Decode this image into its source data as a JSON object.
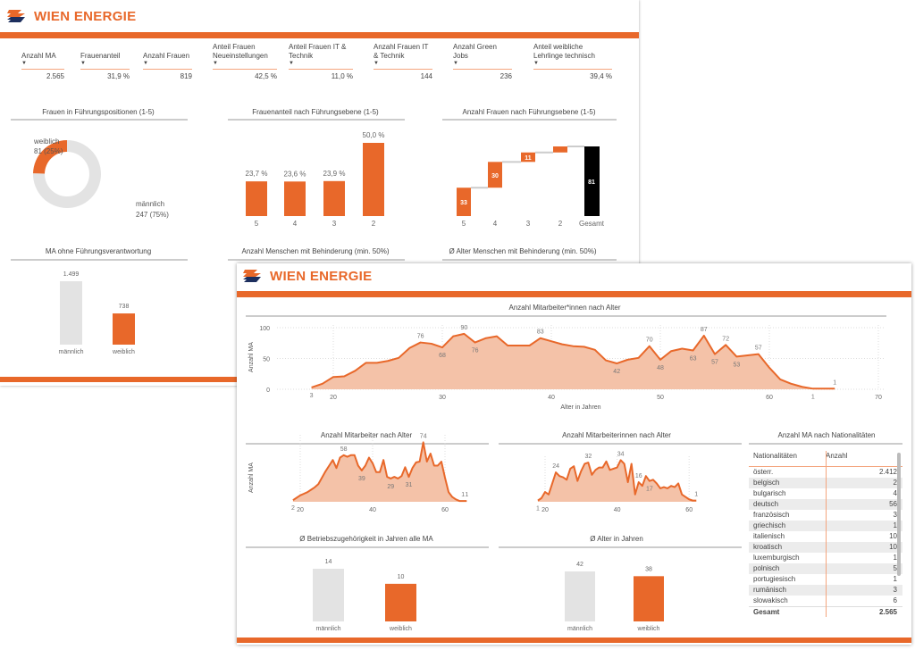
{
  "brand": {
    "name": "WIEN ENERGIE",
    "accent": "#e8682a",
    "light": "#f4c2a8",
    "grey": "#e3e3e3"
  },
  "kpis": [
    {
      "label": "Anzahl MA",
      "value": "2.565"
    },
    {
      "label": "Frauenanteil",
      "value": "31,9 %"
    },
    {
      "label": "Anzahl Frauen",
      "value": "819"
    },
    {
      "label": "Anteil Frauen Neueinstellungen",
      "value": "42,5 %"
    },
    {
      "label": "Anteil Frauen IT & Technik",
      "value": "11,0 %"
    },
    {
      "label": "Anzahl Frauen IT & Technik",
      "value": "144"
    },
    {
      "label": "Anzahl Green Jobs",
      "value": "236"
    },
    {
      "label": "Anteil weibliche Lehrlinge technisch",
      "value": "39,4 %"
    }
  ],
  "back_titles": {
    "donut": "Frauen in Führungspositionen (1-5)",
    "share": "Frauenanteil nach Führungsebene (1-5)",
    "waterfall": "Anzahl Frauen nach Führungsebene (1-5)",
    "ohne": "MA ohne Führungsverantwortung",
    "behinderung": "Anzahl Menschen mit Behinderung (min. 50%)",
    "alter_beh": "Ø Alter Menschen mit Behinderung (min. 50%)"
  },
  "front_titles": {
    "main": "Anzahl Mitarbeiter*innen nach Alter",
    "male": "Anzahl Mitarbeiter nach Alter",
    "female": "Anzahl Mitarbeiterinnen nach Alter",
    "tenure": "Ø Betriebszugehörigkeit in Jahren alle MA",
    "age": "Ø Alter in Jahren",
    "nat": "Anzahl MA nach Nationalitäten"
  },
  "chart_data": [
    {
      "id": "donut",
      "type": "pie",
      "title": "Frauen in Führungspositionen (1-5)",
      "slices": [
        {
          "name": "weiblich",
          "value": 81,
          "label": "81 (25%)"
        },
        {
          "name": "männlich",
          "value": 247,
          "label": "247 (75%)"
        }
      ]
    },
    {
      "id": "share",
      "type": "bar",
      "categories": [
        "5",
        "4",
        "3",
        "2"
      ],
      "values": [
        23.7,
        23.6,
        23.9,
        50.0
      ],
      "labels": [
        "23,7 %",
        "23,6 %",
        "23,9 %",
        "50,0 %"
      ]
    },
    {
      "id": "waterfall",
      "type": "bar",
      "categories": [
        "5",
        "4",
        "3",
        "2",
        "Gesamt"
      ],
      "values": [
        33,
        30,
        11,
        7,
        81
      ],
      "labels": [
        "33",
        "30",
        "11",
        "",
        "81"
      ]
    },
    {
      "id": "ohne",
      "type": "bar",
      "categories": [
        "männlich",
        "weiblich"
      ],
      "values": [
        1499,
        738
      ],
      "labels": [
        "1.499",
        "738"
      ]
    },
    {
      "id": "main",
      "type": "area",
      "xlabel": "Alter in Jahren",
      "ylabel": "Anzahl MA",
      "xlim": [
        15,
        70
      ],
      "ylim": [
        0,
        100
      ],
      "xticks": [
        20,
        30,
        40,
        50,
        60,
        70
      ],
      "yticks": [
        0,
        50,
        100
      ],
      "x": [
        18,
        19,
        20,
        21,
        22,
        23,
        24,
        25,
        26,
        27,
        28,
        29,
        30,
        31,
        32,
        33,
        34,
        35,
        36,
        37,
        38,
        39,
        40,
        41,
        42,
        43,
        44,
        45,
        46,
        47,
        48,
        49,
        50,
        51,
        52,
        53,
        54,
        55,
        56,
        57,
        58,
        59,
        60,
        61,
        62,
        63,
        64,
        65,
        66
      ],
      "y": [
        3,
        9,
        20,
        21,
        30,
        43,
        43,
        46,
        51,
        67,
        76,
        74,
        68,
        86,
        90,
        76,
        83,
        86,
        71,
        71,
        71,
        83,
        78,
        73,
        70,
        69,
        64,
        47,
        42,
        48,
        51,
        70,
        48,
        62,
        66,
        63,
        87,
        57,
        72,
        53,
        55,
        57,
        35,
        16,
        9,
        4,
        1,
        1,
        1
      ],
      "labelled": [
        18,
        28,
        30,
        32,
        33,
        39,
        46,
        49,
        50,
        53,
        54,
        55,
        56,
        57,
        59,
        64,
        66
      ]
    },
    {
      "id": "male",
      "type": "area",
      "ylabel": "Anzahl MA",
      "xlim": [
        20,
        60
      ],
      "ylim": [
        0,
        80
      ],
      "xticks": [
        20,
        40,
        60
      ],
      "x": [
        18,
        19,
        20,
        21,
        22,
        23,
        24,
        25,
        26,
        27,
        28,
        29,
        30,
        31,
        32,
        33,
        34,
        35,
        36,
        37,
        38,
        39,
        40,
        41,
        42,
        43,
        44,
        45,
        46,
        47,
        48,
        49,
        50,
        51,
        52,
        53,
        54,
        55,
        56,
        57,
        58,
        59,
        60,
        61,
        62,
        63,
        64,
        65,
        66
      ],
      "y": [
        2,
        5,
        8,
        10,
        12,
        15,
        18,
        22,
        30,
        38,
        45,
        52,
        42,
        55,
        58,
        56,
        58,
        58,
        45,
        39,
        45,
        55,
        48,
        37,
        37,
        52,
        31,
        29,
        31,
        29,
        32,
        43,
        31,
        42,
        49,
        50,
        74,
        50,
        60,
        45,
        45,
        50,
        30,
        12,
        6,
        3,
        1,
        1,
        1
      ],
      "labelled": [
        18,
        32,
        37,
        45,
        50,
        54,
        65,
        66
      ]
    },
    {
      "id": "female",
      "type": "area",
      "xlim": [
        20,
        60
      ],
      "ylim": [
        0,
        35
      ],
      "xticks": [
        20,
        40,
        60
      ],
      "x": [
        18,
        19,
        20,
        21,
        22,
        23,
        24,
        25,
        26,
        27,
        28,
        29,
        30,
        31,
        32,
        33,
        34,
        35,
        36,
        37,
        38,
        39,
        40,
        41,
        42,
        43,
        44,
        45,
        46,
        47,
        48,
        49,
        50,
        51,
        52,
        53,
        54,
        55,
        56,
        57,
        58,
        59,
        60,
        61,
        62
      ],
      "y": [
        1,
        3,
        8,
        6,
        15,
        24,
        21,
        20,
        18,
        27,
        29,
        17,
        25,
        31,
        32,
        22,
        26,
        28,
        28,
        33,
        26,
        27,
        28,
        34,
        31,
        16,
        31,
        6,
        16,
        13,
        21,
        17,
        18,
        15,
        11,
        12,
        11,
        13,
        12,
        15,
        6,
        4,
        2,
        1,
        1
      ],
      "labelled": [
        18,
        23,
        32,
        41,
        46,
        49,
        62
      ]
    },
    {
      "id": "tenure",
      "type": "bar",
      "categories": [
        "männlich",
        "weiblich"
      ],
      "values": [
        14,
        10
      ],
      "labels": [
        "14",
        "10"
      ]
    },
    {
      "id": "age",
      "type": "bar",
      "categories": [
        "männlich",
        "weiblich"
      ],
      "values": [
        42,
        38
      ],
      "labels": [
        "42",
        "38"
      ]
    }
  ],
  "nat_table": {
    "headers": [
      "Nationalitäten",
      "Anzahl"
    ],
    "rows": [
      [
        "österr.",
        "2.412"
      ],
      [
        "belgisch",
        "2"
      ],
      [
        "bulgarisch",
        "4"
      ],
      [
        "deutsch",
        "56"
      ],
      [
        "französisch",
        "3"
      ],
      [
        "griechisch",
        "1"
      ],
      [
        "italienisch",
        "10"
      ],
      [
        "kroatisch",
        "10"
      ],
      [
        "luxemburgisch",
        "1"
      ],
      [
        "polnisch",
        "5"
      ],
      [
        "portugiesisch",
        "1"
      ],
      [
        "rumänisch",
        "3"
      ],
      [
        "slowakisch",
        "6"
      ]
    ],
    "total": [
      "Gesamt",
      "2.565"
    ]
  }
}
